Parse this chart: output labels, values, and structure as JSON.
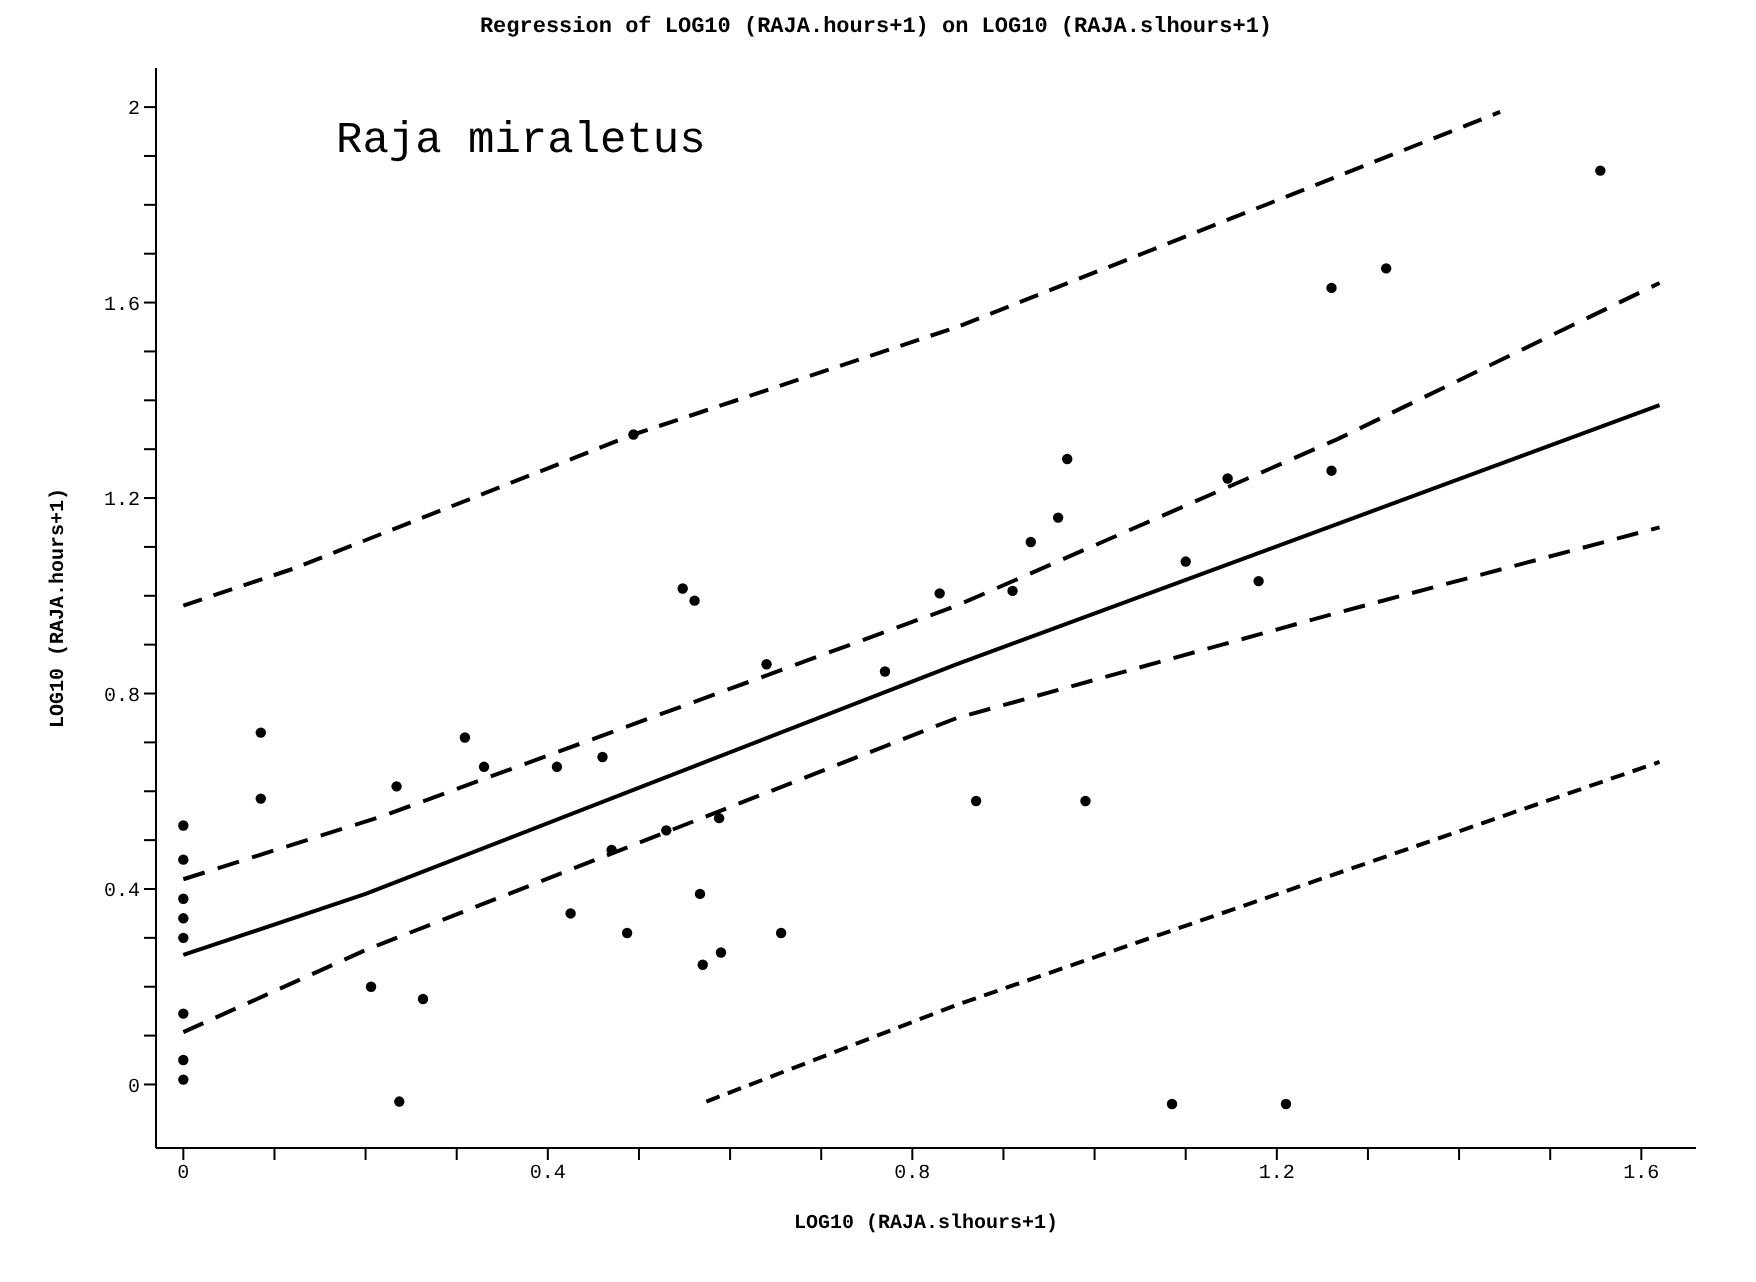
{
  "chart_data": {
    "type": "scatter",
    "title": "Regression of LOG10 (RAJA.hours+1) on LOG10 (RAJA.slhours+1)",
    "xlabel": "LOG10 (RAJA.slhours+1)",
    "ylabel": "LOG10 (RAJA.hours+1)",
    "annotations": [
      "Raja miraletus"
    ],
    "xlim": [
      -0.03,
      1.66
    ],
    "ylim": [
      -0.13,
      2.08
    ],
    "xticks": [
      0,
      {
        "value": 0.1,
        "label": null
      },
      {
        "value": 0.2,
        "label": null
      },
      {
        "value": 0.3,
        "label": null
      },
      0.4,
      {
        "value": 0.5,
        "label": null
      },
      {
        "value": 0.6,
        "label": null
      },
      {
        "value": 0.7,
        "label": null
      },
      0.8,
      {
        "value": 0.9,
        "label": null
      },
      {
        "value": 1.0,
        "label": null
      },
      {
        "value": 1.1,
        "label": null
      },
      1.2,
      {
        "value": 1.3,
        "label": null
      },
      {
        "value": 1.4,
        "label": null
      },
      {
        "value": 1.5,
        "label": null
      },
      1.6
    ],
    "yticks": [
      0,
      {
        "value": 0.1,
        "label": null
      },
      {
        "value": 0.2,
        "label": null
      },
      {
        "value": 0.3,
        "label": null
      },
      0.4,
      {
        "value": 0.5,
        "label": null
      },
      {
        "value": 0.6,
        "label": null
      },
      {
        "value": 0.7,
        "label": null
      },
      0.8,
      {
        "value": 0.9,
        "label": null
      },
      {
        "value": 1.0,
        "label": null
      },
      {
        "value": 1.1,
        "label": null
      },
      1.2,
      {
        "value": 1.3,
        "label": null
      },
      {
        "value": 1.4,
        "label": null
      },
      {
        "value": 1.5,
        "label": null
      },
      1.6,
      {
        "value": 1.7,
        "label": null
      },
      {
        "value": 1.8,
        "label": null
      },
      {
        "value": 1.9,
        "label": null
      },
      2
    ],
    "marker": "circle",
    "series": [
      {
        "color": "#000000",
        "x": [
          0.085,
          0.085,
          0,
          0,
          0,
          0,
          0,
          0,
          0,
          0,
          0.234,
          0.309,
          0.33,
          0.41,
          0.46,
          0.494,
          0.548,
          0.561,
          0.64,
          0.77,
          0.83,
          0.206,
          0.263,
          0.237,
          0.425,
          0.487,
          0.567,
          0.57,
          0.59,
          0.656,
          0.588,
          0.53,
          0.47,
          0.91,
          0.93,
          0.96,
          0.97,
          1.146,
          1.1,
          1.18,
          1.26,
          1.26,
          1.32,
          1.555,
          0.87,
          0.99,
          1.085,
          1.21
        ],
        "values": [
          0.72,
          0.585,
          0.53,
          0.46,
          0.38,
          0.34,
          0.3,
          0.145,
          0.05,
          0.01,
          0.61,
          0.71,
          0.65,
          0.65,
          0.67,
          1.33,
          1.015,
          0.99,
          0.86,
          0.845,
          1.005,
          0.2,
          0.175,
          -0.035,
          0.35,
          0.31,
          0.39,
          0.245,
          0.27,
          0.31,
          0.545,
          0.52,
          0.48,
          1.01,
          1.11,
          1.16,
          1.28,
          1.24,
          1.07,
          1.03,
          1.256,
          1.63,
          1.67,
          1.87,
          0.58,
          0.58,
          -0.04,
          -0.04
        ]
      },
      {
        "type": "line",
        "color": "#000000",
        "line_style": "solid",
        "marker": "none",
        "x": [
          0,
          0.2,
          0.849,
          1.62
        ],
        "values": [
          0.265,
          0.39,
          0.86,
          1.39
        ]
      },
      {
        "type": "line",
        "color": "#000000",
        "line_style": "dashed",
        "marker": "none",
        "x": [
          0,
          0.22,
          0.849,
          1.266,
          1.62
        ],
        "values": [
          0.42,
          0.55,
          0.98,
          1.32,
          1.64
        ]
      },
      {
        "type": "line",
        "color": "#000000",
        "line_style": "dashed",
        "marker": "none",
        "x": [
          0,
          0.2,
          0.849,
          1.266,
          1.62
        ],
        "values": [
          0.107,
          0.275,
          0.75,
          0.965,
          1.14
        ]
      },
      {
        "type": "line",
        "color": "#000000",
        "line_style": "dashed",
        "marker": "none",
        "x": [
          0,
          0.12,
          0.494,
          0.849,
          1.445
        ],
        "values": [
          0.98,
          1.055,
          1.33,
          1.55,
          1.99
        ]
      },
      {
        "type": "line",
        "color": "#000000",
        "line_style": "dashed",
        "marker": "none",
        "x": [
          0.574,
          0.849,
          1.62
        ],
        "values": [
          -0.035,
          0.163,
          0.66
        ]
      }
    ]
  }
}
